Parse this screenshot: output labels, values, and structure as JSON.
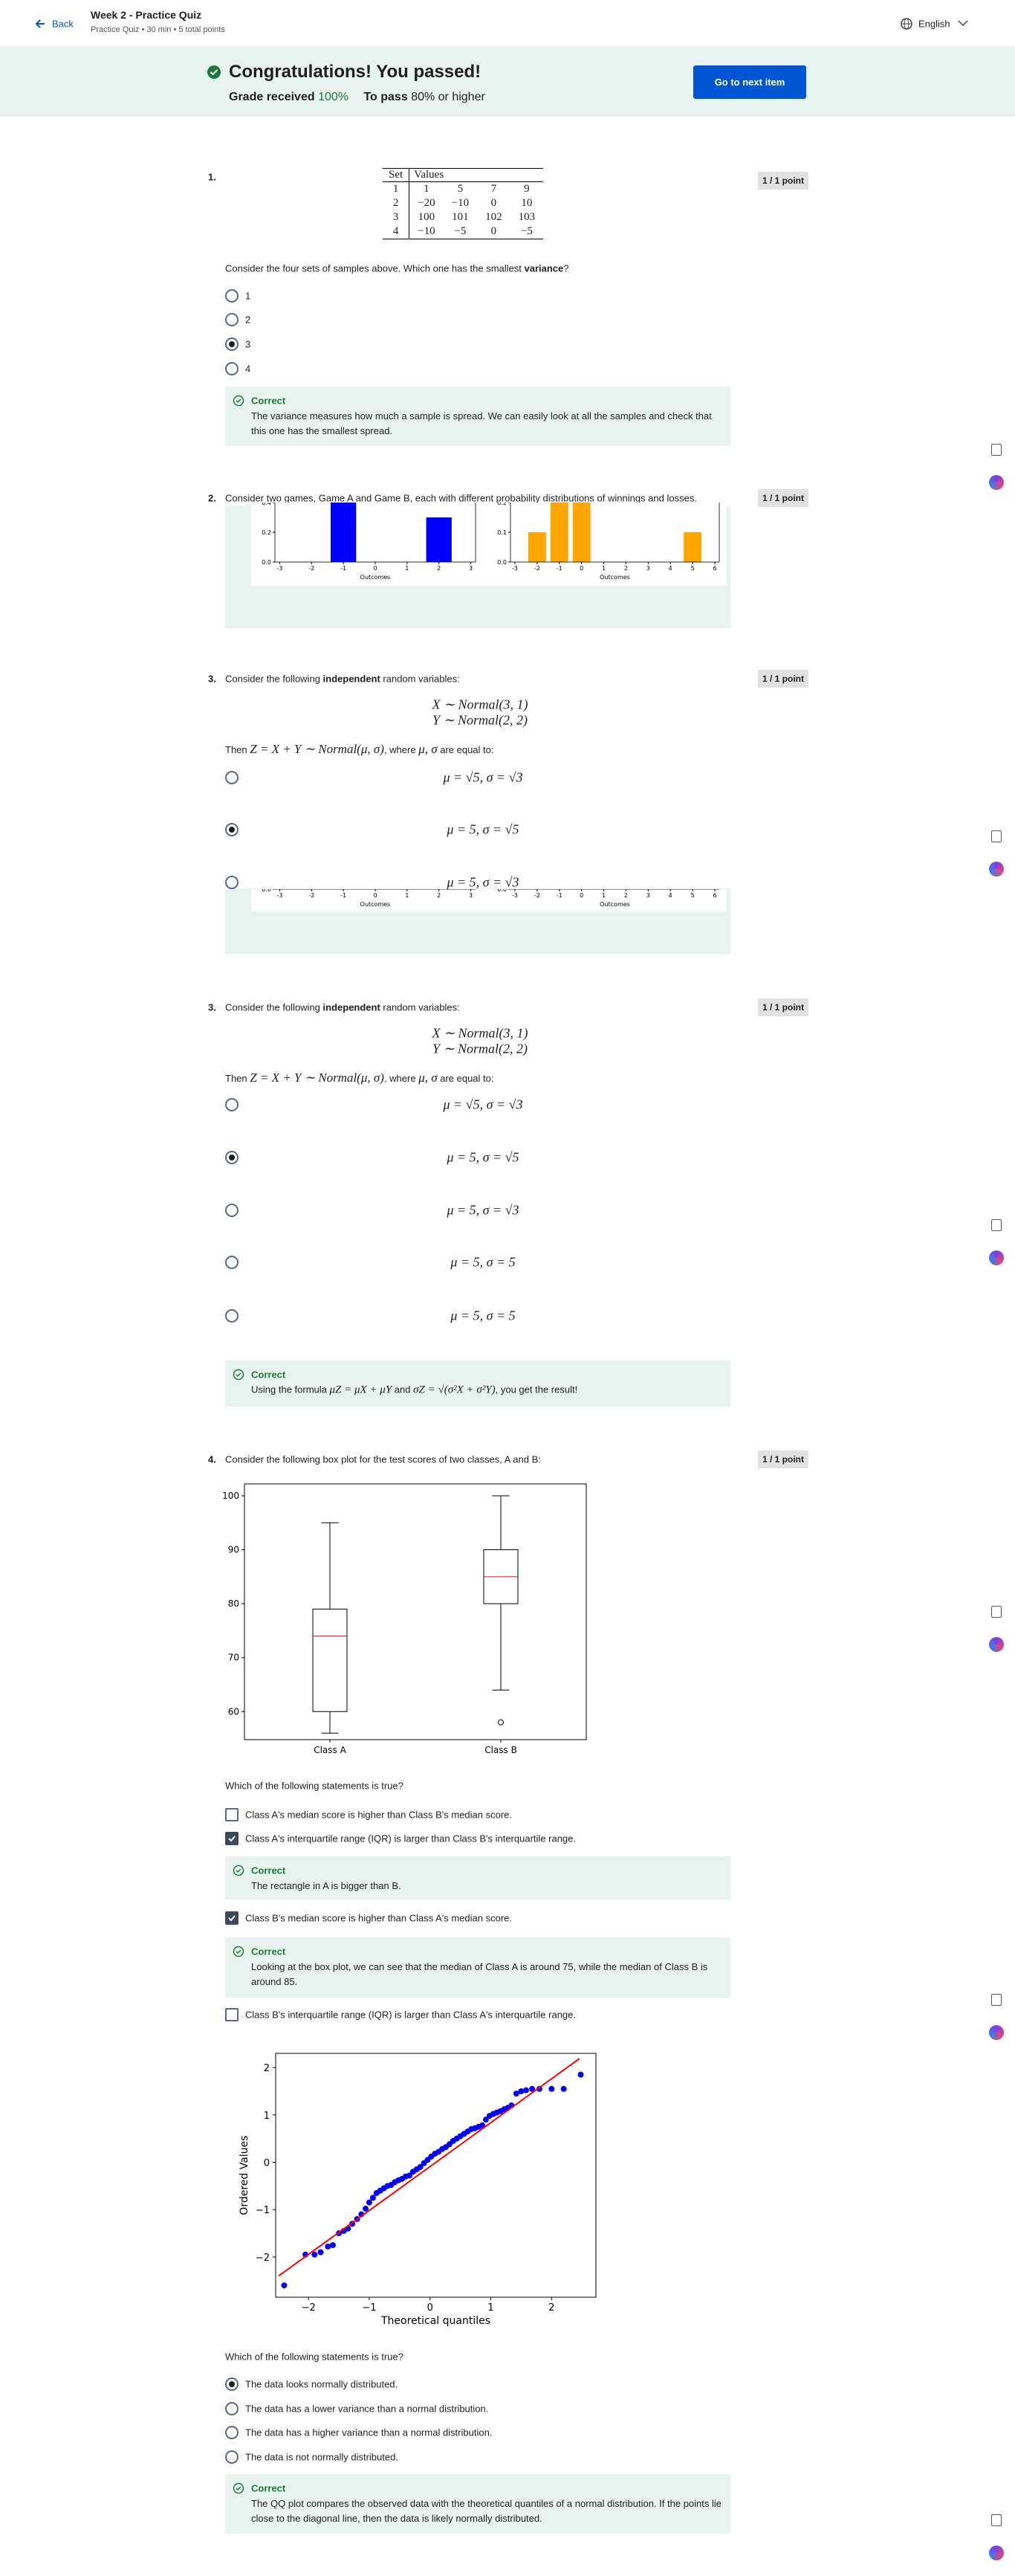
{
  "header": {
    "back": "Back",
    "title": "Week 2 - Practice Quiz",
    "subtitle": "Practice Quiz • 30 min • 5 total points",
    "language": "English"
  },
  "banner": {
    "title": "Congratulations! You passed!",
    "grade_label": "Grade received",
    "grade": "100%",
    "pass_label": "To pass",
    "pass": "80% or higher",
    "button": "Go to next item"
  },
  "questions": [
    {
      "number": "1.",
      "points": "1 / 1 point",
      "table": {
        "header": [
          "Set",
          "Values"
        ],
        "rows": [
          [
            "1",
            "1",
            "5",
            "7",
            "9"
          ],
          [
            "2",
            "−20",
            "−10",
            "0",
            "10"
          ],
          [
            "3",
            "100",
            "101",
            "102",
            "103"
          ],
          [
            "4",
            "−10",
            "−5",
            "0",
            "−5"
          ]
        ]
      },
      "prompt": [
        "Consider the four sets of samples above. Which one has the smallest ",
        "variance",
        "?"
      ],
      "options": [
        "1",
        "2",
        "3",
        "4"
      ],
      "selected": 2,
      "feedback": {
        "label": "Correct",
        "text": "The variance measures how much a sample is spread. We can easily look at all the samples and check that this one has the smallest spread."
      }
    },
    {
      "number": "2.",
      "points": "1 / 1 point",
      "prompt": "Consider two games, Game A and Game B, each with different probability distributions of winnings and losses.",
      "chart_data": [
        {
          "type": "bar",
          "x": [
            -1,
            2
          ],
          "values": [
            0.4,
            0.3
          ],
          "color": "#0000ff",
          "xlabel": "Outcomes",
          "xlim": [
            -3.15,
            3.15
          ],
          "xticks": [
            -3,
            -2,
            -1,
            0,
            1,
            2,
            3
          ],
          "ylim": [
            0,
            0.45
          ],
          "yticks": [
            {
              "value": 0,
              "label": "0.0"
            },
            {
              "value": 0.2,
              "label": "0.2"
            },
            {
              "value": 0.4,
              "label": "0.4"
            }
          ]
        },
        {
          "type": "bar",
          "x": [
            -2,
            -1,
            0,
            5
          ],
          "values": [
            0.1,
            0.2,
            0.2,
            0.1
          ],
          "color": "#ffa500",
          "xlabel": "Outcomes",
          "xlim": [
            -3.2,
            6.2
          ],
          "xticks": [
            -3,
            -2,
            -1,
            0,
            1,
            2,
            3,
            4,
            5,
            6
          ],
          "ylim": [
            0,
            0.225
          ],
          "yticks": [
            {
              "value": 0,
              "label": "0.0"
            },
            0.1,
            0.2
          ]
        }
      ]
    },
    {
      "number": "3.",
      "points": "1 / 1 point",
      "prompt": [
        "Consider the following ",
        "independent",
        " random variables:"
      ],
      "equations": [
        "X ∼ Normal(3, 1)",
        "Y ∼ Normal(2, 2)"
      ],
      "then": [
        "Then ",
        "Z = X + Y ∼ Normal(μ, σ)",
        ", where ",
        "μ, σ",
        " are equal to:"
      ],
      "options": [
        "μ = √5, σ = √3",
        "μ = 5, σ = √5",
        "μ = 5, σ = √3"
      ],
      "selected": 1
    },
    {
      "number": "3.",
      "points": "1 / 1 point",
      "prompt": [
        "Consider the following ",
        "independent",
        " random variables:"
      ],
      "equations": [
        "X ∼ Normal(3, 1)",
        "Y ∼ Normal(2, 2)"
      ],
      "then": [
        "Then ",
        "Z = X + Y ∼ Normal(μ, σ)",
        ", where ",
        "μ, σ",
        " are equal to:"
      ],
      "options": [
        "μ = √5, σ = √3",
        "μ = 5, σ = √5",
        "μ = 5, σ = √3",
        "μ = 5, σ = 5",
        "μ = 5, σ = 5"
      ],
      "selected": 1,
      "feedback": {
        "label": "Correct",
        "text": [
          "Using the formula ",
          "μZ = μX + μY",
          " and ",
          "σZ = √(σ²X + σ²Y)",
          ", you get the result!"
        ]
      }
    },
    {
      "number": "4.",
      "points": "1 / 1 point",
      "prompt": "Consider the following box plot for the test scores of two classes, A and B:",
      "chart_data": {
        "type": "box",
        "categories": [
          "Class A",
          "Class B"
        ],
        "boxes": [
          {
            "whisker_low": 56,
            "q1": 60,
            "median": 74,
            "q3": 79,
            "whisker_high": 95,
            "outliers": []
          },
          {
            "whisker_low": 64,
            "q1": 80,
            "median": 85,
            "q3": 90,
            "whisker_high": 100,
            "outliers": [
              58
            ]
          }
        ],
        "median_color": "#ff0000",
        "ylim": [
          54.8,
          102.2
        ],
        "yticks": [
          60,
          70,
          80,
          90,
          100
        ]
      },
      "statement_prompt": "Which of the following statements is true?",
      "options": [
        {
          "text": "Class A's median score is higher than Class B's median score.",
          "checked": false
        },
        {
          "text": "Class A's interquartile range (IQR) is larger than Class B's interquartile range.",
          "checked": true,
          "feedback": {
            "label": "Correct",
            "text": "The rectangle in A is bigger than B."
          }
        },
        {
          "text": "Class B's median score is higher than Class A's median score.",
          "checked": true,
          "feedback": {
            "label": "Correct",
            "text": "Looking at the box plot, we can see that the median of Class A is around 75, while the median of Class B is around 85."
          }
        },
        {
          "text": "Class B's interquartile range (IQR) is larger than Class A's interquartile range.",
          "checked": false
        }
      ],
      "qq_chart_data": {
        "type": "scatter",
        "xlabel": "Theoretical quantiles",
        "ylabel": "Ordered Values",
        "color": "#0000ff",
        "line_color": "#ff0000",
        "x": [
          -2.4,
          -2.05,
          -1.9,
          -1.8,
          -1.68,
          -1.6,
          -1.5,
          -1.42,
          -1.35,
          -1.28,
          -1.2,
          -1.13,
          -1.06,
          -1.0,
          -0.94,
          -0.88,
          -0.82,
          -0.76,
          -0.7,
          -0.64,
          -0.58,
          -0.52,
          -0.46,
          -0.4,
          -0.34,
          -0.28,
          -0.22,
          -0.16,
          -0.1,
          -0.04,
          0.02,
          0.08,
          0.14,
          0.2,
          0.26,
          0.32,
          0.38,
          0.44,
          0.5,
          0.56,
          0.62,
          0.68,
          0.74,
          0.8,
          0.86,
          0.92,
          0.98,
          1.04,
          1.1,
          1.16,
          1.22,
          1.28,
          1.34,
          1.42,
          1.5,
          1.58,
          1.68,
          1.8,
          2.0,
          2.2,
          2.48
        ],
        "y": [
          -2.6,
          -1.95,
          -1.95,
          -1.9,
          -1.78,
          -1.75,
          -1.5,
          -1.45,
          -1.4,
          -1.3,
          -1.2,
          -1.1,
          -0.98,
          -0.85,
          -0.75,
          -0.65,
          -0.6,
          -0.55,
          -0.5,
          -0.48,
          -0.42,
          -0.38,
          -0.35,
          -0.3,
          -0.28,
          -0.2,
          -0.15,
          -0.1,
          -0.02,
          0.05,
          0.12,
          0.18,
          0.22,
          0.28,
          0.32,
          0.38,
          0.45,
          0.5,
          0.55,
          0.6,
          0.65,
          0.7,
          0.72,
          0.75,
          0.78,
          0.9,
          0.98,
          1.02,
          1.05,
          1.08,
          1.12,
          1.15,
          1.2,
          1.45,
          1.5,
          1.52,
          1.55,
          1.55,
          1.55,
          1.55,
          1.85
        ],
        "fit_line": {
          "x": [
            -2.49,
            2.46
          ],
          "y": [
            -2.4,
            2.19
          ]
        },
        "xlim": [
          -2.54,
          2.73
        ],
        "xticks": [
          {
            "value": -2,
            "label": "−2"
          },
          {
            "value": -1,
            "label": "−1"
          },
          0,
          1,
          2
        ],
        "ylim": [
          -2.85,
          2.3
        ],
        "yticks": [
          {
            "value": -2,
            "label": "−2"
          },
          {
            "value": -1,
            "label": "−1"
          },
          0,
          1,
          2
        ]
      },
      "qq_prompt": "Which of the following statements is true?",
      "qq_options": [
        "The data looks normally distributed.",
        "The data has a lower variance than a normal distribution.",
        "The data has a higher variance than a normal distribution.",
        "The data is not normally distributed."
      ],
      "qq_selected": 0,
      "qq_feedback": {
        "label": "Correct",
        "text": "The QQ plot compares the observed data with the theoretical quantiles of a normal distribution. If the points lie close to the diagonal line, then the data is likely normally distributed."
      }
    }
  ]
}
